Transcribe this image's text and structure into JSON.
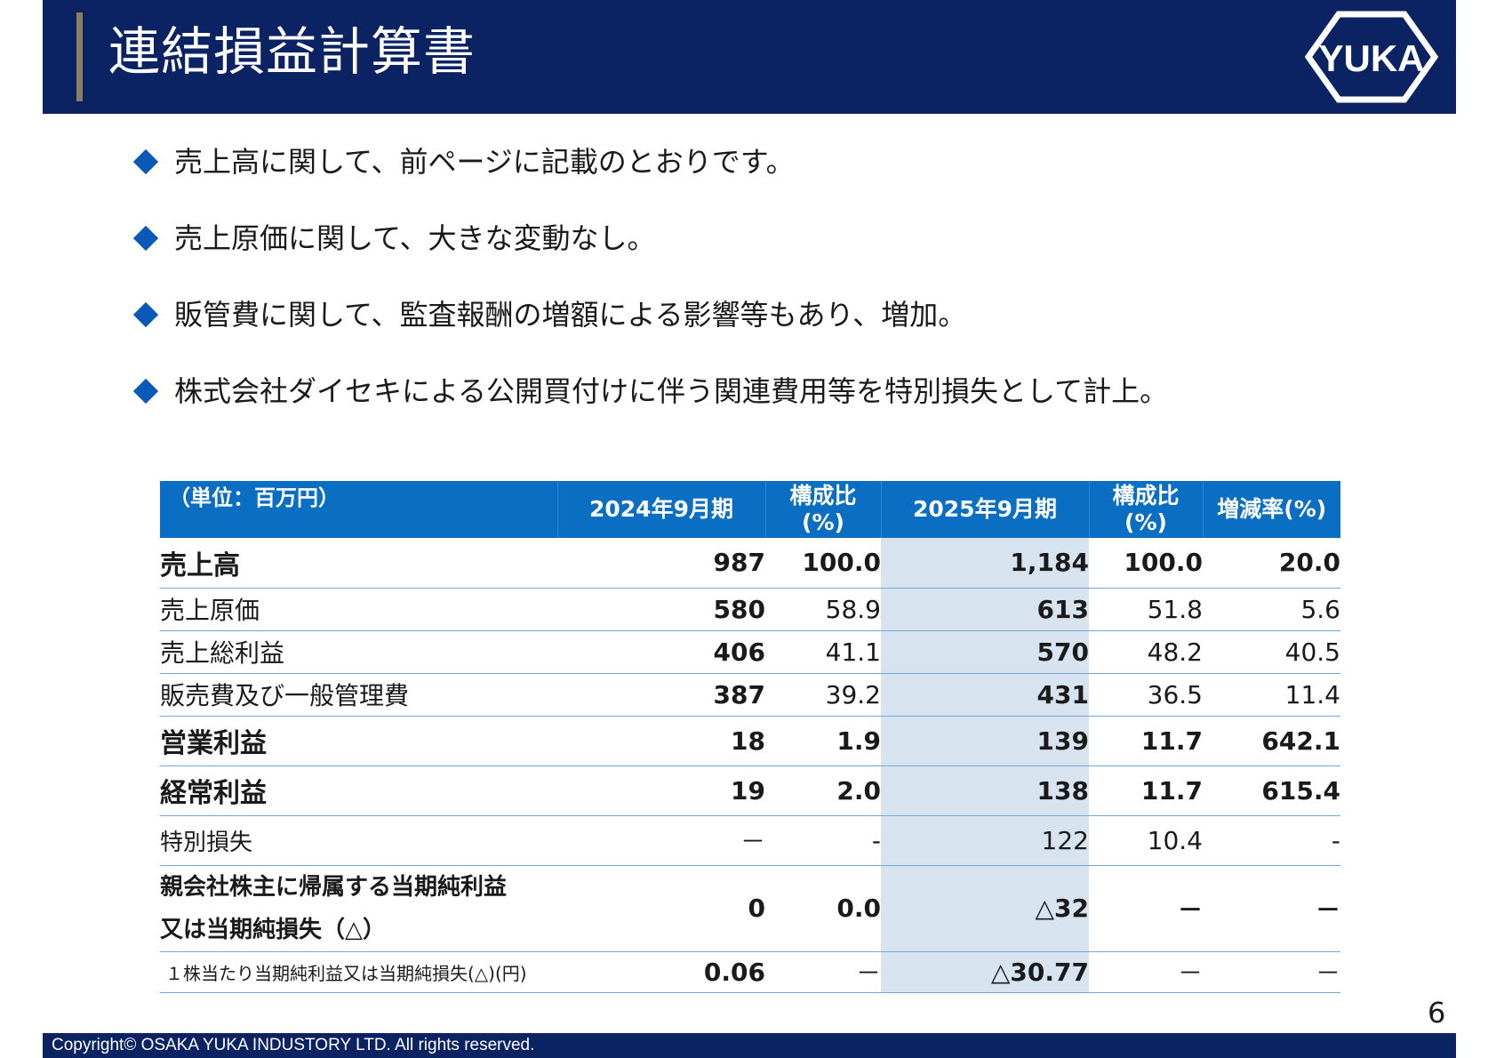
{
  "header": {
    "title": "連結損益計算書",
    "logo_text": "YUKA"
  },
  "bullets": [
    "売上高に関して、前ページに記載のとおりです。",
    "売上原価に関して、大きな変動なし。",
    "販管費に関して、監査報酬の増額による影響等もあり、増加。",
    "株式会社ダイセキによる公開買付けに伴う関連費用等を特別損失として計上。"
  ],
  "table": {
    "unit": "（単位：百万円）",
    "col_2024": "2024年9月期",
    "col_ratio_a1": "構成比",
    "col_ratio_a2": "(%)",
    "col_2025": "2025年9月期",
    "col_ratio_b1": "構成比",
    "col_ratio_b2": "(%)",
    "col_change": "増減率(%)",
    "rows": [
      {
        "label": "売上高",
        "v2024": "987",
        "r2024": "100.0",
        "v2025": "1,184",
        "r2025": "100.0",
        "chg": "20.0"
      },
      {
        "label": "売上原価",
        "v2024": "580",
        "r2024": "58.9",
        "v2025": "613",
        "r2025": "51.8",
        "chg": "5.6"
      },
      {
        "label": "売上総利益",
        "v2024": "406",
        "r2024": "41.1",
        "v2025": "570",
        "r2025": "48.2",
        "chg": "40.5"
      },
      {
        "label": "販売費及び一般管理費",
        "v2024": "387",
        "r2024": "39.2",
        "v2025": "431",
        "r2025": "36.5",
        "chg": "11.4"
      },
      {
        "label": "営業利益",
        "v2024": "18",
        "r2024": "1.9",
        "v2025": "139",
        "r2025": "11.7",
        "chg": "642.1"
      },
      {
        "label": "経常利益",
        "v2024": "19",
        "r2024": "2.0",
        "v2025": "138",
        "r2025": "11.7",
        "chg": "615.4"
      },
      {
        "label": "特別損失",
        "v2024": "－",
        "r2024": "-",
        "v2025": "122",
        "r2025": "10.4",
        "chg": "-"
      },
      {
        "label1": "親会社株主に帰属する当期純利益",
        "label2": "又は当期純損失（△）",
        "v2024": "0",
        "r2024": "0.0",
        "v2025": "△32",
        "r2025": "－",
        "chg": "－"
      },
      {
        "label": "１株当たり当期純利益又は当期純損失(△)(円)",
        "v2024": "0.06",
        "r2024": "－",
        "v2025": "△30.77",
        "r2025": "－",
        "chg": "－"
      }
    ]
  },
  "page_number": "6",
  "footer": {
    "copyright": "Copyright© OSAKA YUKA INDUSTORY LTD. All rights reserved."
  },
  "colors": {
    "header_bg": "#0b2263",
    "accent_bar": "#8a8060",
    "bullet_diamond": "#0a59b8",
    "table_header": "#0a6ec2",
    "shaded_column": "#d8e3f0"
  }
}
